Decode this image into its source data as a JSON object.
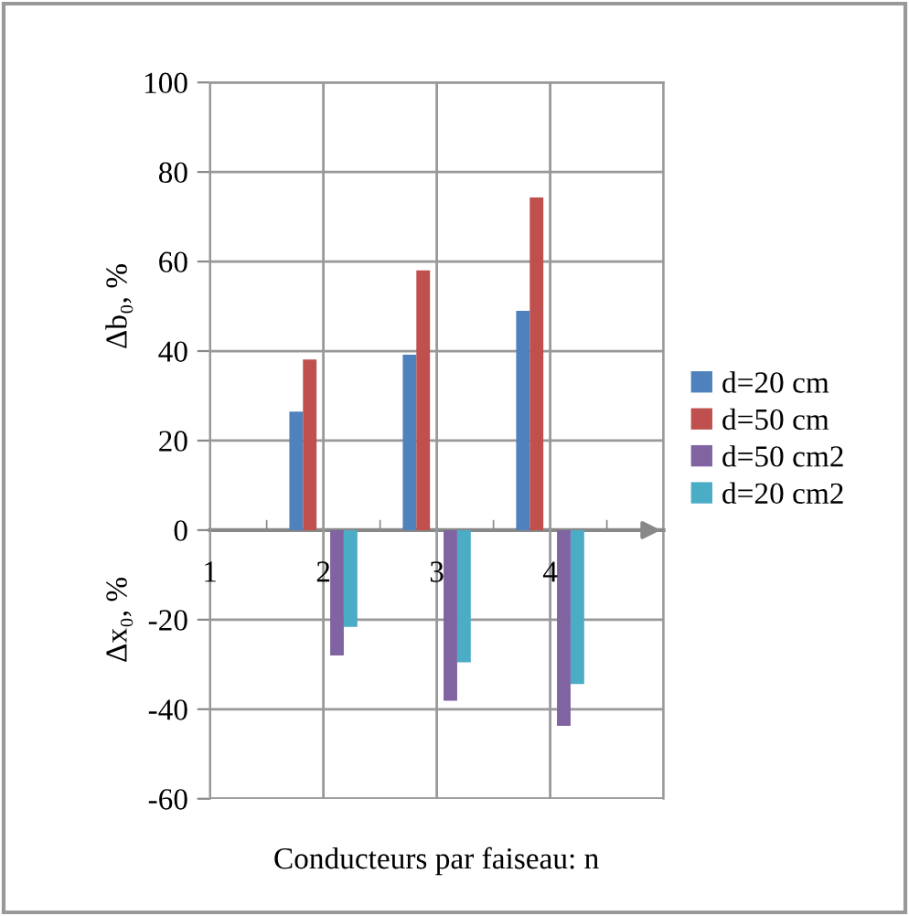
{
  "chart_data": {
    "type": "bar",
    "xlabel": "Conducteurs par faiseau: n",
    "ylabel": "Δb₀, %",
    "annotations": [
      "Δx₀, %"
    ],
    "categories": [
      "1",
      "2",
      "3",
      "4"
    ],
    "series": [
      {
        "name": "d=20 cm",
        "color": "#4f81bd",
        "values": [
          0,
          26.5,
          39.2,
          49.0
        ]
      },
      {
        "name": "d=50 cm",
        "color": "#c0504d",
        "values": [
          0,
          38.1,
          58.0,
          74.3
        ]
      },
      {
        "name": "d=50 cm2",
        "color": "#8064a2",
        "values": [
          0,
          -28.0,
          -38.1,
          -43.7
        ]
      },
      {
        "name": "d=20 cm2",
        "color": "#4bacc6",
        "values": [
          0,
          -21.6,
          -29.5,
          -34.4
        ]
      }
    ],
    "ylim": [
      -60,
      100
    ],
    "yticks": [
      -60,
      -40,
      -20,
      0,
      20,
      40,
      60,
      80,
      100
    ],
    "grid": true,
    "legend": "right"
  }
}
